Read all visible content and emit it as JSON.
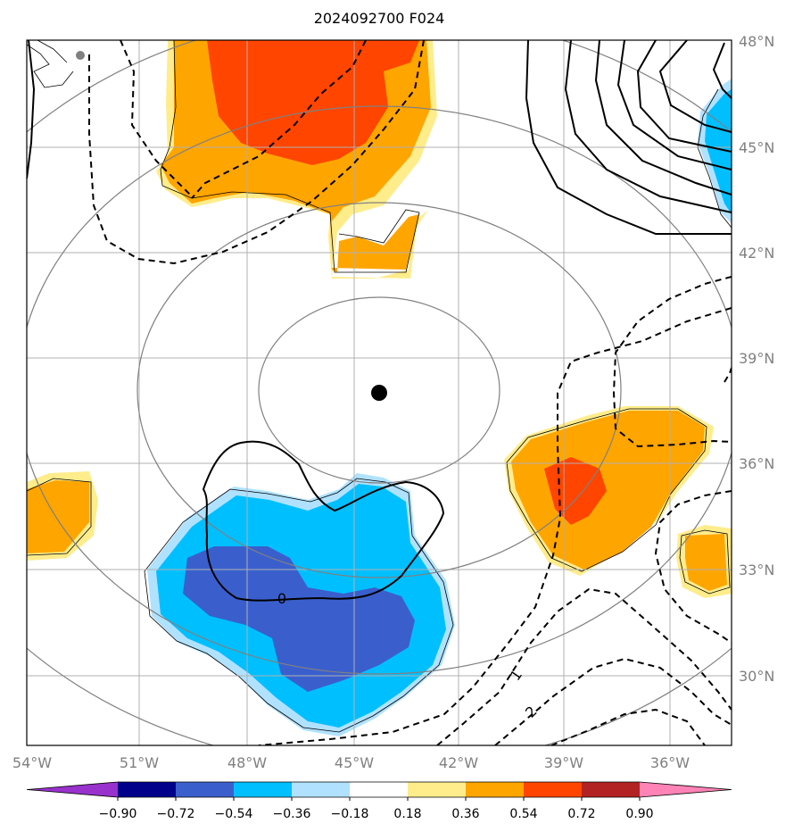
{
  "chart_data": {
    "type": "map-contour",
    "title": "2024092700 F024",
    "map_extent": {
      "lon": [
        -54,
        -34
      ],
      "lat": [
        28,
        48
      ]
    },
    "x_ticks": [
      "54°W",
      "51°W",
      "48°W",
      "45°W",
      "42°W",
      "39°W",
      "36°W"
    ],
    "y_ticks": [
      "48°N",
      "45°N",
      "42°N",
      "39°N",
      "36°N",
      "33°N",
      "30°N"
    ],
    "center_marker": {
      "lon": -44.3,
      "lat": 38.0
    },
    "range_rings_km": [
      200,
      400,
      600,
      800
    ],
    "colorbar": {
      "levels": [
        "−0.90",
        "−0.72",
        "−0.54",
        "−0.36",
        "−0.18",
        "0.18",
        "0.36",
        "0.54",
        "0.72",
        "0.90"
      ],
      "colors": [
        "#9932cc",
        "#00008b",
        "#3a5fcd",
        "#00bfff",
        "#b0e2ff",
        "#ffffff",
        "#ffec8b",
        "#ffa500",
        "#ff4500",
        "#b22222",
        "#ff83b6"
      ],
      "extend": "both"
    },
    "contour_labels": [
      "0",
      "1",
      "2"
    ],
    "colors": {
      "grid": "#b0b0b0",
      "rings": "#808080",
      "tick_labels": "#808080"
    }
  }
}
